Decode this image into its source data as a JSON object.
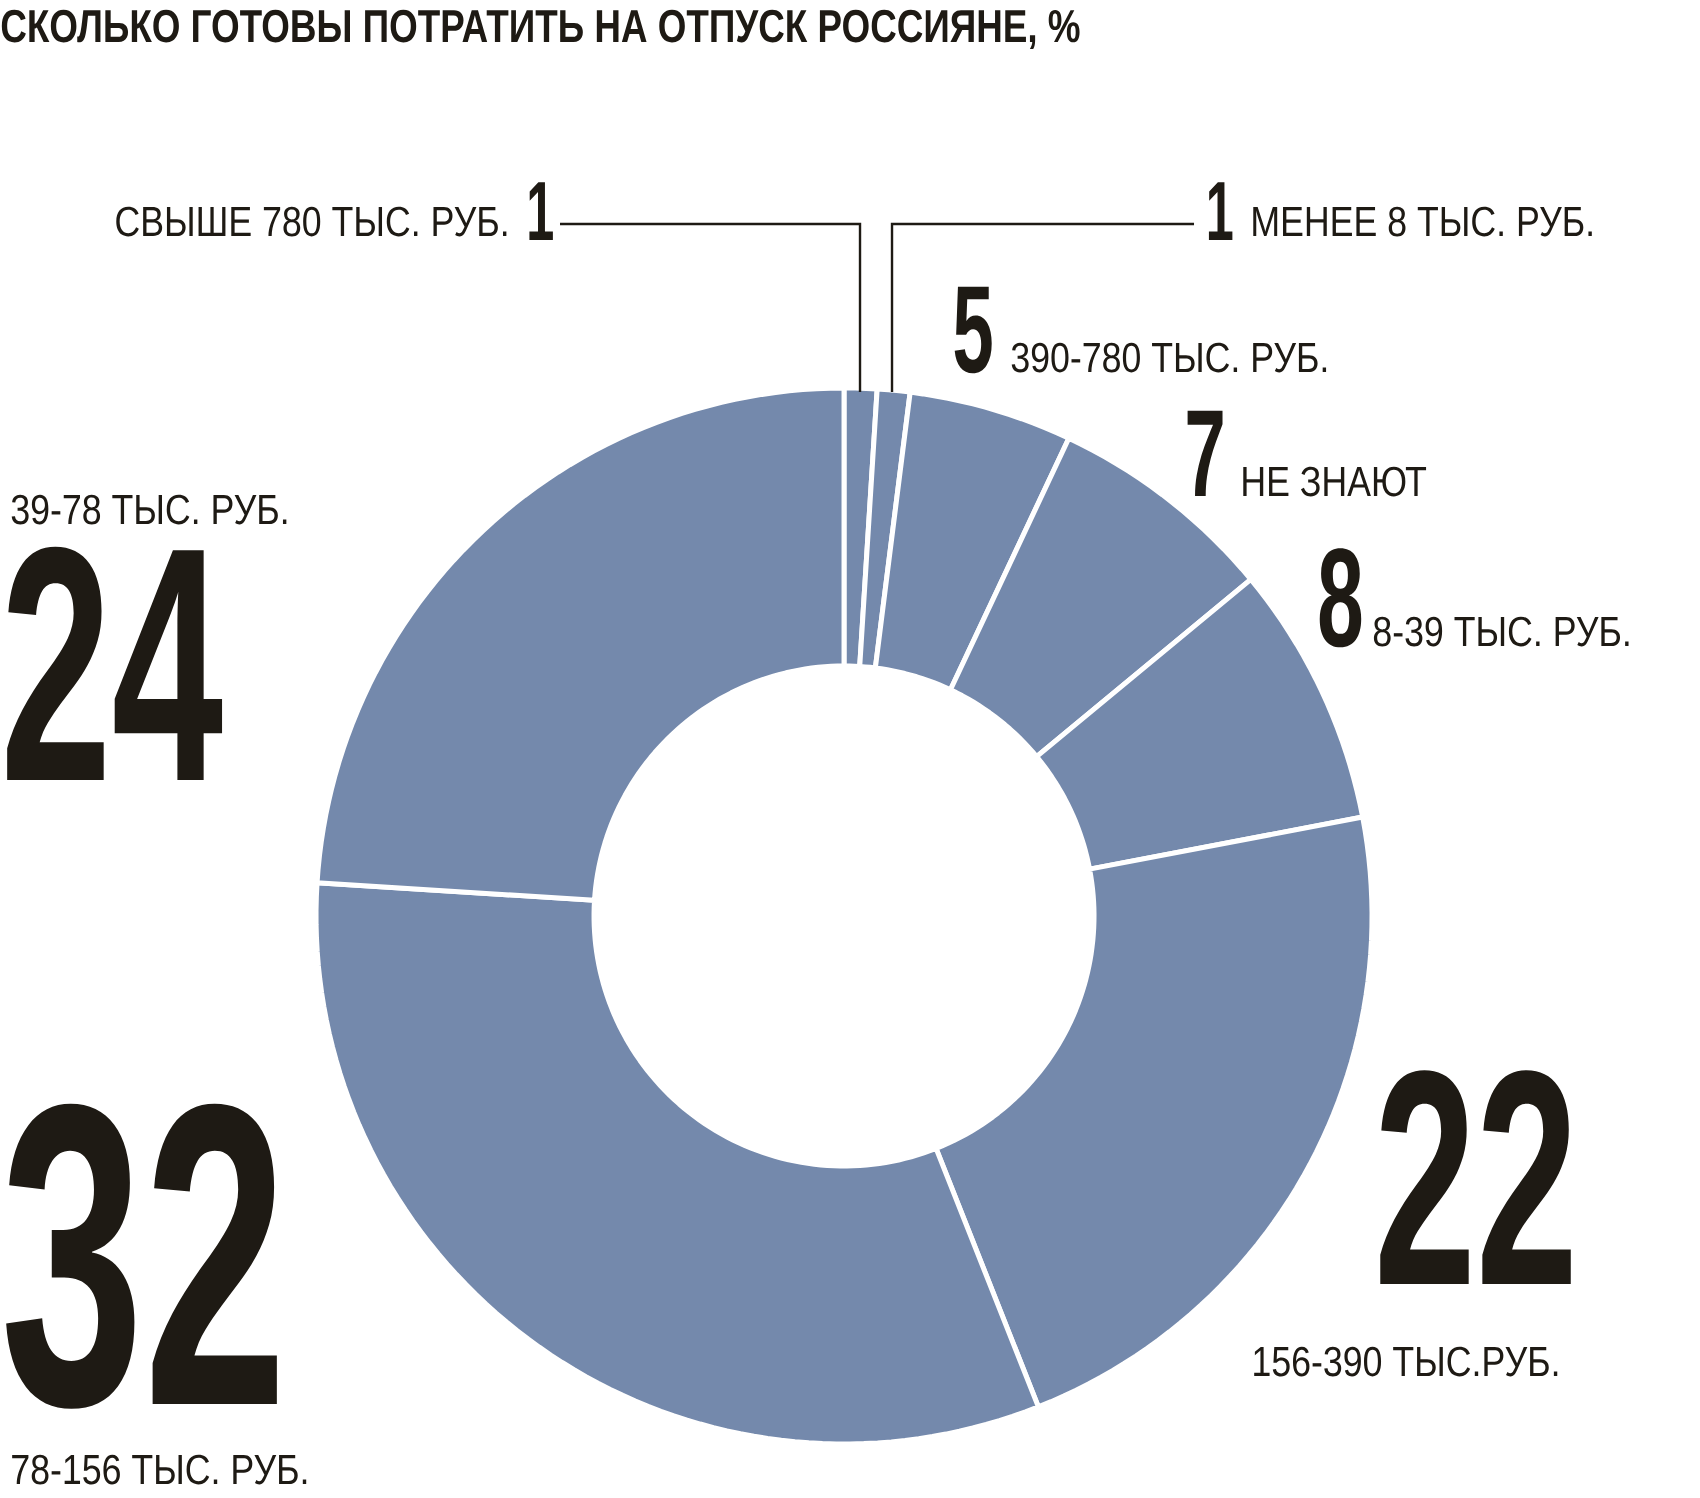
{
  "chart_data": {
    "type": "donut",
    "title": "СКОЛЬКО ГОТОВЫ ПОТРАТИТЬ НА ОТПУСК РОССИЯНЕ, %",
    "categories": [
      "СВЫШЕ 780 ТЫС. РУБ.",
      "МЕНЕЕ 8 ТЫС. РУБ.",
      "390-780 ТЫС. РУБ.",
      "НЕ ЗНАЮТ",
      "8-39 ТЫС. РУБ.",
      "156-390 ТЫС.РУБ.",
      "78-156 ТЫС. РУБ.",
      "39-78 ТЫС. РУБ."
    ],
    "values": [
      1,
      1,
      5,
      7,
      8,
      22,
      32,
      24
    ],
    "colors": [
      "#7489ac",
      "#7489ac",
      "#7489ac",
      "#7489ac",
      "#7489ac",
      "#7489ac",
      "#7489ac",
      "#7489ac"
    ],
    "data_labels": true
  }
}
